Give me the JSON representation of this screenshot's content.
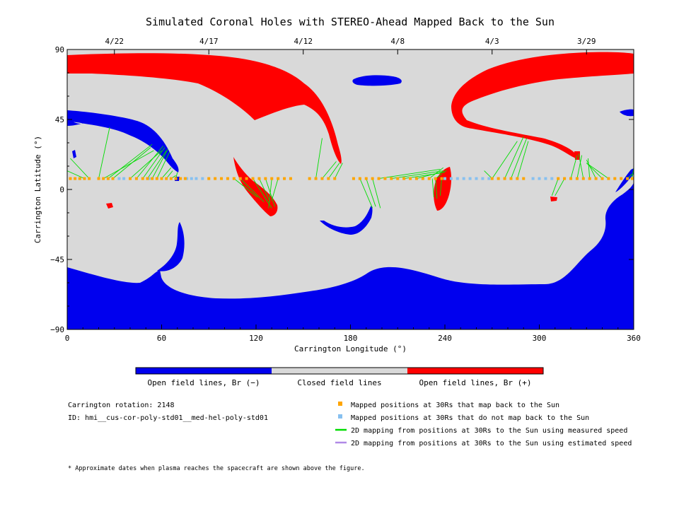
{
  "chart_data": {
    "type": "map",
    "title": "Simulated Coronal Holes with STEREO-Ahead Mapped Back to the Sun",
    "xlabel": "Carrington Longitude (°)",
    "ylabel": "Carrington Latitude (°)",
    "xlim": [
      0,
      360
    ],
    "ylim": [
      -90,
      90
    ],
    "xticks": [
      0,
      60,
      120,
      180,
      240,
      300,
      360
    ],
    "yticks": [
      -90,
      -45,
      0,
      45,
      90
    ],
    "top_axis": {
      "tick_labels": [
        "4/22",
        "4/17",
        "4/12",
        "4/8",
        "4/3",
        "3/29"
      ],
      "tick_longitudes": [
        30,
        90,
        150,
        210,
        270,
        330
      ]
    },
    "colors": {
      "negative": "#0000ee",
      "closed": "#d9d9d9",
      "positive": "#ff0000",
      "mapped": "#ffa500",
      "unmapped": "#87c0f0",
      "measured": "#00dd00",
      "estimated": "#b08ae6"
    },
    "colorbar": {
      "labels": [
        "Open field lines, Br (−)",
        "Closed field lines",
        "Open field lines, Br (+)"
      ]
    },
    "point_latitude": 7,
    "mapped_longitudes": [
      2,
      5,
      8,
      11,
      14,
      20,
      23,
      26,
      29,
      40,
      44,
      48,
      51,
      54,
      57,
      60,
      63,
      66,
      69,
      72,
      75,
      90,
      94,
      98,
      102,
      106,
      110,
      114,
      118,
      122,
      126,
      130,
      134,
      138,
      142,
      154,
      158,
      162,
      166,
      170,
      182,
      186,
      190,
      194,
      198,
      202,
      206,
      210,
      214,
      218,
      222,
      226,
      230,
      234,
      238,
      270,
      274,
      278,
      282,
      286,
      290,
      312,
      316,
      320,
      324,
      328,
      332,
      336,
      340,
      344,
      348,
      352,
      356,
      359
    ],
    "unmapped_longitudes": [
      33,
      36,
      52,
      76,
      79,
      82,
      86,
      240,
      244,
      248,
      252,
      256,
      260,
      264,
      268,
      296,
      300,
      304,
      308
    ],
    "mapping_lines": [
      [
        11,
        7,
        0,
        12
      ],
      [
        14,
        7,
        2,
        20
      ],
      [
        20,
        7,
        27,
        40
      ],
      [
        23,
        7,
        55,
        25
      ],
      [
        26,
        7,
        54,
        29
      ],
      [
        29,
        7,
        53,
        27
      ],
      [
        40,
        7,
        60,
        25
      ],
      [
        44,
        7,
        61,
        28
      ],
      [
        48,
        7,
        62,
        27
      ],
      [
        51,
        7,
        63,
        25
      ],
      [
        54,
        7,
        64,
        26
      ],
      [
        57,
        7,
        65,
        24
      ],
      [
        60,
        7,
        66,
        14
      ],
      [
        63,
        7,
        67,
        12
      ],
      [
        66,
        7,
        69,
        9
      ],
      [
        69,
        7,
        70,
        11
      ],
      [
        118,
        7,
        130,
        -12
      ],
      [
        122,
        7,
        129,
        -8
      ],
      [
        126,
        7,
        132,
        -11
      ],
      [
        130,
        7,
        128,
        -12
      ],
      [
        134,
        7,
        130,
        -7
      ],
      [
        106,
        7,
        121,
        -5
      ],
      [
        110,
        7,
        125,
        -8
      ],
      [
        158,
        7,
        162,
        33
      ],
      [
        162,
        7,
        171,
        18
      ],
      [
        166,
        7,
        173,
        17
      ],
      [
        170,
        7,
        175,
        17
      ],
      [
        186,
        7,
        194,
        -12
      ],
      [
        190,
        7,
        196,
        -11
      ],
      [
        194,
        7,
        199,
        -12
      ],
      [
        198,
        7,
        237,
        13
      ],
      [
        206,
        7,
        239,
        12
      ],
      [
        214,
        7,
        240,
        11
      ],
      [
        222,
        7,
        241,
        12
      ],
      [
        230,
        7,
        239,
        14
      ],
      [
        234,
        7,
        238,
        10
      ],
      [
        232,
        7,
        233,
        -5
      ],
      [
        234,
        7,
        235,
        -6
      ],
      [
        238,
        7,
        237,
        -4
      ],
      [
        270,
        7,
        286,
        31
      ],
      [
        278,
        7,
        290,
        34
      ],
      [
        282,
        7,
        292,
        33
      ],
      [
        286,
        7,
        293,
        31
      ],
      [
        312,
        7,
        308,
        -4
      ],
      [
        316,
        7,
        310,
        -4
      ],
      [
        320,
        7,
        324,
        22
      ],
      [
        324,
        7,
        327,
        22
      ],
      [
        328,
        7,
        325,
        23
      ],
      [
        332,
        7,
        331,
        20
      ],
      [
        336,
        7,
        330,
        19
      ],
      [
        340,
        7,
        330,
        17
      ],
      [
        344,
        7,
        330,
        17
      ],
      [
        356,
        7,
        359,
        10
      ],
      [
        359,
        7,
        360,
        14
      ],
      [
        270,
        7,
        265,
        12
      ]
    ],
    "legend": [
      {
        "symbol": "square",
        "color_key": "mapped",
        "label": "Mapped positions at 30Rs that map back to the Sun"
      },
      {
        "symbol": "square",
        "color_key": "unmapped",
        "label": "Mapped positions at 30Rs that do not map back to the Sun"
      },
      {
        "symbol": "line",
        "color_key": "measured",
        "label": "2D mapping from positions at 30Rs to the Sun using measured speed"
      },
      {
        "symbol": "line",
        "color_key": "estimated",
        "label": "2D mapping from positions at 30Rs to the Sun using estimated speed"
      }
    ]
  },
  "info": {
    "carrington_rotation": "Carrington rotation: 2148",
    "model_id": "ID: hmi__cus-cor-poly-std01__med-hel-poly-std01"
  },
  "footnote": "* Approximate dates when plasma reaches the spacecraft are shown above the figure."
}
